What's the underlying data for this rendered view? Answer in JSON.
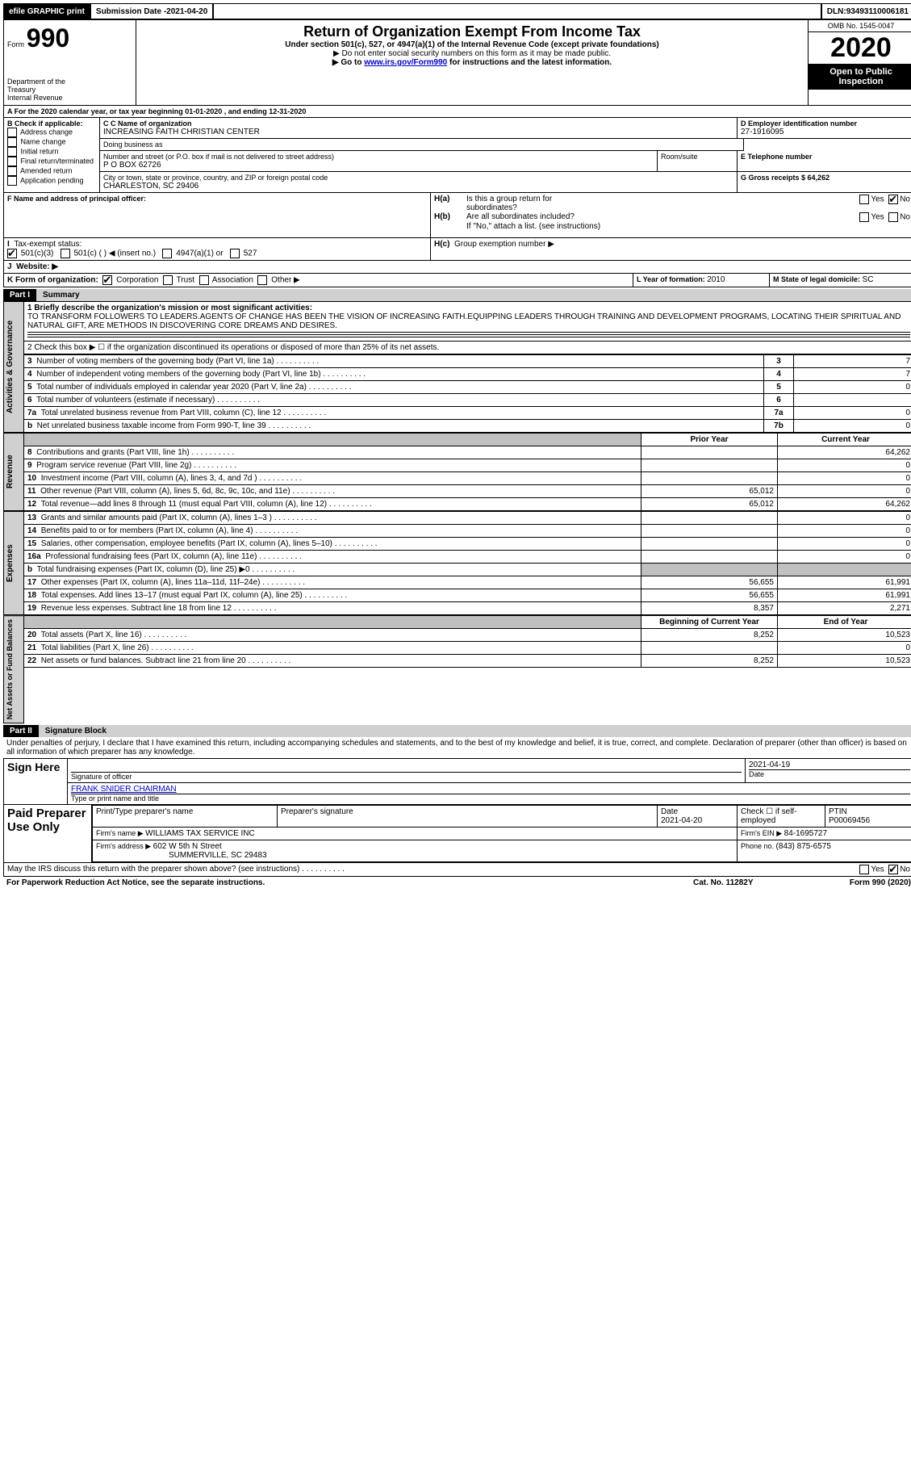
{
  "topbar": {
    "efile": "efile GRAPHIC print",
    "submission_label": "Submission Date - ",
    "submission_date": "2021-04-20",
    "dln_label": "DLN: ",
    "dln": "93493110006181"
  },
  "header": {
    "form_word": "Form",
    "form_num": "990",
    "dept1": "Department of the",
    "dept2": "Treasury",
    "dept3": "Internal Revenue",
    "title": "Return of Organization Exempt From Income Tax",
    "subtitle": "Under section 501(c), 527, or 4947(a)(1) of the Internal Revenue Code (except private foundations)",
    "note1": "▶ Do not enter social security numbers on this form as it may be made public.",
    "note2a": "▶ Go to ",
    "note2_link": "www.irs.gov/Form990",
    "note2b": " for instructions and the latest information.",
    "omb": "OMB No. 1545-0047",
    "year": "2020",
    "open1": "Open to Public",
    "open2": "Inspection"
  },
  "line_a": "For the 2020 calendar year, or tax year beginning 01-01-2020    , and ending 12-31-2020",
  "boxB": {
    "label": "B Check if applicable:",
    "items": [
      "Address change",
      "Name change",
      "Initial return",
      "Final return/terminated",
      "Amended return",
      "Application pending"
    ]
  },
  "boxC": {
    "label_name": "C Name of organization",
    "name": "INCREASING FAITH CHRISTIAN CENTER",
    "dba_label": "Doing business as",
    "dba": "",
    "street_label": "Number and street (or P.O. box if mail is not delivered to street address)",
    "room_label": "Room/suite",
    "street": "P O BOX 62726",
    "city_label": "City or town, state or province, country, and ZIP or foreign postal code",
    "city": "CHARLESTON, SC  29406"
  },
  "boxD": {
    "label": "D Employer identification number",
    "ein": "27-1916095"
  },
  "boxE": {
    "label": "E Telephone number",
    "val": ""
  },
  "boxG": {
    "label": "G Gross receipts $ ",
    "val": "64,262"
  },
  "boxF": {
    "label": "F  Name and address of principal officer:",
    "val": ""
  },
  "boxH": {
    "a": "Is this a group return for",
    "a2": "subordinates?",
    "b": "Are all subordinates included?",
    "b2": "If \"No,\" attach a list. (see instructions)",
    "c": "Group exemption number ▶",
    "ha": "H(a)",
    "hb": "H(b)",
    "hc": "H(c)",
    "yes": "Yes",
    "no": "No"
  },
  "boxI": {
    "label": "Tax-exempt status:",
    "o1": "501(c)(3)",
    "o2": "501(c) (  ) ◀ (insert no.)",
    "o3": "4947(a)(1) or",
    "o4": "527"
  },
  "boxJ": {
    "label": "Website: ▶"
  },
  "boxK": {
    "label": "K Form of organization:",
    "o1": "Corporation",
    "o2": "Trust",
    "o3": "Association",
    "o4": "Other ▶"
  },
  "boxL": {
    "label": "L Year of formation: ",
    "val": "2010"
  },
  "boxM": {
    "label": "M State of legal domicile: ",
    "val": "SC"
  },
  "part1": {
    "hdr": "Part I",
    "title": "Summary",
    "l1_label": "1  Briefly describe the organization's mission or most significant activities:",
    "l1_text": "TO TRANSFORM FOLLOWERS TO LEADERS.AGENTS OF CHANGE HAS BEEN THE VISION OF INCREASING FAITH.EQUIPPING LEADERS THROUGH TRAINING AND DEVELOPMENT PROGRAMS, LOCATING THEIR SPIRITUAL AND NATURAL GIFT, ARE METHODS IN DISCOVERING CORE DREAMS AND DESIRES.",
    "l2": "2   Check this box ▶ ☐  if the organization discontinued its operations or disposed of more than 25% of its net assets.",
    "rows_gov": [
      {
        "n": "3",
        "t": "Number of voting members of the governing body (Part VI, line 1a)",
        "box": "3",
        "v": "7"
      },
      {
        "n": "4",
        "t": "Number of independent voting members of the governing body (Part VI, line 1b)",
        "box": "4",
        "v": "7"
      },
      {
        "n": "5",
        "t": "Total number of individuals employed in calendar year 2020 (Part V, line 2a)",
        "box": "5",
        "v": "0"
      },
      {
        "n": "6",
        "t": "Total number of volunteers (estimate if necessary)",
        "box": "6",
        "v": ""
      },
      {
        "n": "7a",
        "t": "Total unrelated business revenue from Part VIII, column (C), line 12",
        "box": "7a",
        "v": "0"
      },
      {
        "n": "b",
        "t": "Net unrelated business taxable income from Form 990-T, line 39",
        "box": "7b",
        "v": "0"
      }
    ],
    "col_prior": "Prior Year",
    "col_current": "Current Year",
    "col_boy": "Beginning of Current Year",
    "col_eoy": "End of Year",
    "rows_rev": [
      {
        "n": "8",
        "t": "Contributions and grants (Part VIII, line 1h)",
        "p": "",
        "c": "64,262"
      },
      {
        "n": "9",
        "t": "Program service revenue (Part VIII, line 2g)",
        "p": "",
        "c": "0"
      },
      {
        "n": "10",
        "t": "Investment income (Part VIII, column (A), lines 3, 4, and 7d )",
        "p": "",
        "c": "0"
      },
      {
        "n": "11",
        "t": "Other revenue (Part VIII, column (A), lines 5, 6d, 8c, 9c, 10c, and 11e)",
        "p": "65,012",
        "c": "0"
      },
      {
        "n": "12",
        "t": "Total revenue—add lines 8 through 11 (must equal Part VIII, column (A), line 12)",
        "p": "65,012",
        "c": "64,262"
      }
    ],
    "rows_exp": [
      {
        "n": "13",
        "t": "Grants and similar amounts paid (Part IX, column (A), lines 1–3 )",
        "p": "",
        "c": "0"
      },
      {
        "n": "14",
        "t": "Benefits paid to or for members (Part IX, column (A), line 4)",
        "p": "",
        "c": "0"
      },
      {
        "n": "15",
        "t": "Salaries, other compensation, employee benefits (Part IX, column (A), lines 5–10)",
        "p": "",
        "c": "0"
      },
      {
        "n": "16a",
        "t": "Professional fundraising fees (Part IX, column (A), line 11e)",
        "p": "",
        "c": "0"
      },
      {
        "n": "b",
        "t": "Total fundraising expenses (Part IX, column (D), line 25) ▶0",
        "p": "shade",
        "c": "shade"
      },
      {
        "n": "17",
        "t": "Other expenses (Part IX, column (A), lines 11a–11d, 11f–24e)",
        "p": "56,655",
        "c": "61,991"
      },
      {
        "n": "18",
        "t": "Total expenses. Add lines 13–17 (must equal Part IX, column (A), line 25)",
        "p": "56,655",
        "c": "61,991"
      },
      {
        "n": "19",
        "t": "Revenue less expenses. Subtract line 18 from line 12",
        "p": "8,357",
        "c": "2,271"
      }
    ],
    "rows_net": [
      {
        "n": "20",
        "t": "Total assets (Part X, line 16)",
        "p": "8,252",
        "c": "10,523"
      },
      {
        "n": "21",
        "t": "Total liabilities (Part X, line 26)",
        "p": "",
        "c": "0"
      },
      {
        "n": "22",
        "t": "Net assets or fund balances. Subtract line 21 from line 20",
        "p": "8,252",
        "c": "10,523"
      }
    ],
    "tab_gov": "Activities & Governance",
    "tab_rev": "Revenue",
    "tab_exp": "Expenses",
    "tab_net": "Net Assets or Fund Balances"
  },
  "part2": {
    "hdr": "Part II",
    "title": "Signature Block",
    "decl": "Under penalties of perjury, I declare that I have examined this return, including accompanying schedules and statements, and to the best of my knowledge and belief, it is true, correct, and complete. Declaration of preparer (other than officer) is based on all information of which preparer has any knowledge.",
    "sign_here": "Sign Here",
    "sig_officer": "Signature of officer",
    "sig_date_label": "Date",
    "sig_date": "2021-04-19",
    "officer_name": "FRANK SNIDER  CHAIRMAN",
    "type_name": "Type or print name and title",
    "paid": "Paid Preparer Use Only",
    "col_print": "Print/Type preparer's name",
    "col_sig": "Preparer's signature",
    "col_date": "Date",
    "date_val": "2021-04-20",
    "col_check": "Check ☐ if self-employed",
    "col_ptin": "PTIN",
    "ptin": "P00069456",
    "firm_name_lbl": "Firm's name    ▶ ",
    "firm_name": "WILLIAMS TAX SERVICE INC",
    "firm_ein_lbl": "Firm's EIN ▶ ",
    "firm_ein": "84-1695727",
    "firm_addr_lbl": "Firm's address ▶ ",
    "firm_addr1": "602 W 5th N Street",
    "firm_addr2": "SUMMERVILLE, SC  29483",
    "phone_lbl": "Phone no. ",
    "phone": "(843) 875-6575",
    "discuss": "May the IRS discuss this return with the preparer shown above? (see instructions)",
    "yes": "Yes",
    "no": "No"
  },
  "footer": {
    "pra": "For Paperwork Reduction Act Notice, see the separate instructions.",
    "cat": "Cat. No. 11282Y",
    "form": "Form 990 (2020)"
  }
}
